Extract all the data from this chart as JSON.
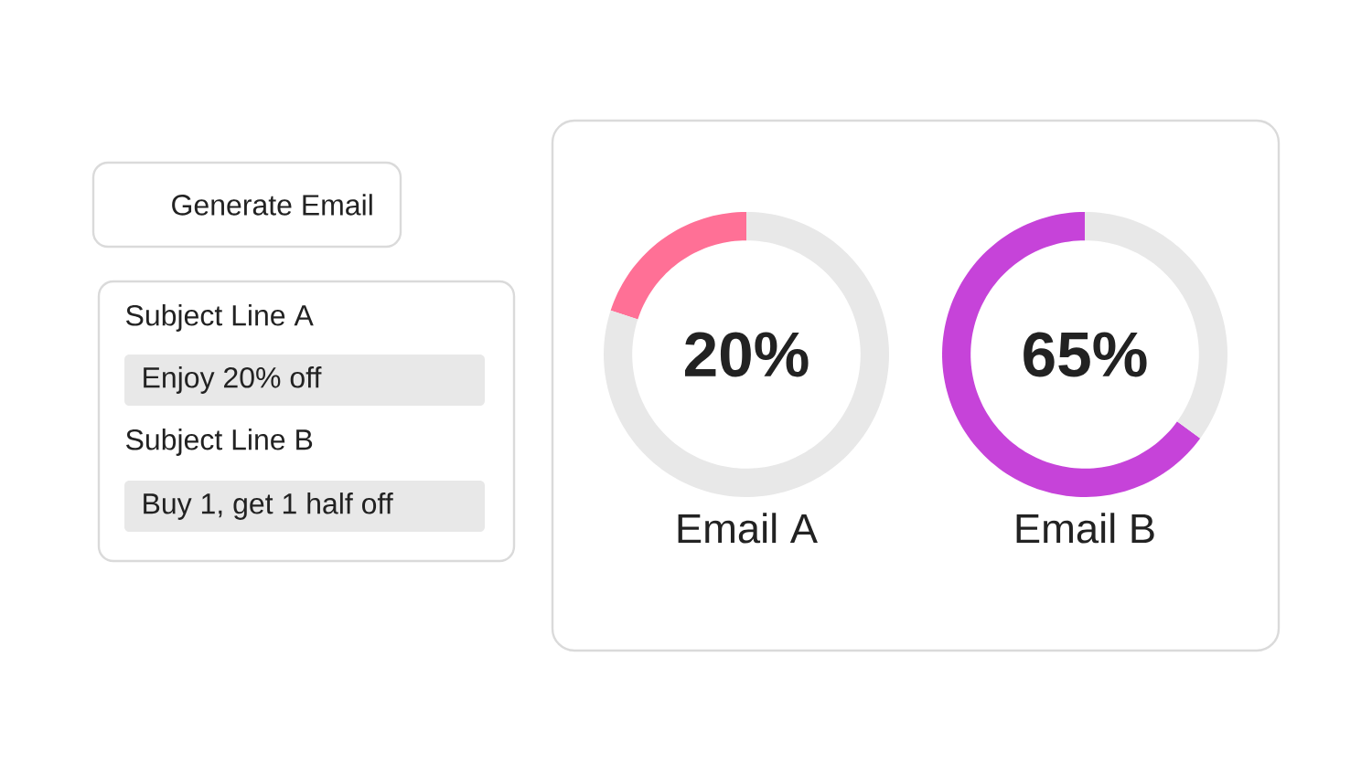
{
  "chart_data": [
    {
      "type": "other",
      "annotations": [
        "Generate Email",
        "Subject Line A",
        "Enjoy 20% off",
        "Subject Line B",
        "Buy 1, get 1 half off"
      ]
    },
    {
      "type": "donut",
      "title": "Email A",
      "categories": [
        null,
        null
      ],
      "values": [
        20,
        80
      ],
      "colors": [
        "#ff7096",
        "#e8e8e8"
      ],
      "annotations": [
        "20%"
      ]
    },
    {
      "type": "donut",
      "title": "Email B",
      "categories": [
        null,
        null
      ],
      "values": [
        65,
        35
      ],
      "colors": [
        "#c643d9",
        "#e8e8e8"
      ],
      "annotations": [
        "65%"
      ]
    }
  ]
}
